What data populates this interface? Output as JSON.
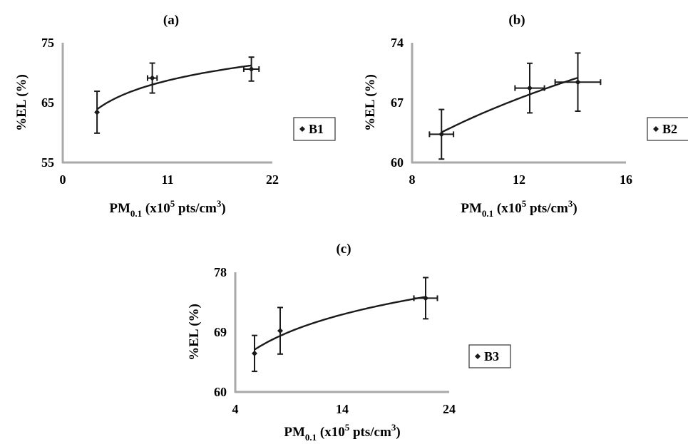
{
  "chart_data": [
    {
      "type": "scatter",
      "panel_label": "(a)",
      "xlabel": {
        "main": "PM",
        "sub": "0.1",
        "mid": " (x10",
        "sup5": "5",
        "unit": " pts/cm",
        "sup3": "3",
        "close": ")"
      },
      "ylabel": "%EL (%)",
      "xlim": [
        0,
        22
      ],
      "ylim": [
        55,
        75
      ],
      "xticks": [
        "0",
        "11",
        "22"
      ],
      "yticks": [
        "55",
        "65",
        "75"
      ],
      "series": [
        {
          "name": "B1",
          "points": [
            {
              "x": 3.6,
              "y": 63.4,
              "y_err": 3.5,
              "x_err": 0
            },
            {
              "x": 9.4,
              "y": 69.1,
              "y_err": 2.5,
              "x_err": 0.5
            },
            {
              "x": 19.8,
              "y": 70.6,
              "y_err": 2.0,
              "x_err": 0.8
            }
          ]
        }
      ],
      "legend": "right"
    },
    {
      "type": "scatter",
      "panel_label": "(b)",
      "xlabel": {
        "main": "PM",
        "sub": "0.1",
        "mid": " (x10",
        "sup5": "5",
        "unit": " pts/cm",
        "sup3": "3",
        "close": ")"
      },
      "ylabel": "%EL (%)",
      "xlim": [
        8,
        16
      ],
      "ylim": [
        60,
        74
      ],
      "xticks": [
        "8",
        "12",
        "16"
      ],
      "yticks": [
        "60",
        "67",
        "74"
      ],
      "series": [
        {
          "name": "B2",
          "points": [
            {
              "x": 9.1,
              "y": 63.3,
              "y_err": 2.9,
              "x_err": 0.45
            },
            {
              "x": 12.4,
              "y": 68.7,
              "y_err": 2.9,
              "x_err": 0.55
            },
            {
              "x": 14.2,
              "y": 69.4,
              "y_err": 3.4,
              "x_err": 0.85
            }
          ]
        }
      ],
      "legend": "right"
    },
    {
      "type": "scatter",
      "panel_label": "(c)",
      "xlabel": {
        "main": "PM",
        "sub": "0.1",
        "mid": " (x10",
        "sup5": "5",
        "unit": " pts/cm",
        "sup3": "3",
        "close": ")"
      },
      "ylabel": "%EL (%)",
      "xlim": [
        4,
        24
      ],
      "ylim": [
        60,
        78
      ],
      "xticks": [
        "4",
        "14",
        "24"
      ],
      "yticks": [
        "60",
        "69",
        "78"
      ],
      "series": [
        {
          "name": "B3",
          "points": [
            {
              "x": 5.8,
              "y": 65.8,
              "y_err": 2.7,
              "x_err": 0
            },
            {
              "x": 8.2,
              "y": 69.2,
              "y_err": 3.5,
              "x_err": 0
            },
            {
              "x": 21.8,
              "y": 74.1,
              "y_err": 3.1,
              "x_err": 1.1
            }
          ]
        }
      ],
      "legend": "right"
    }
  ]
}
